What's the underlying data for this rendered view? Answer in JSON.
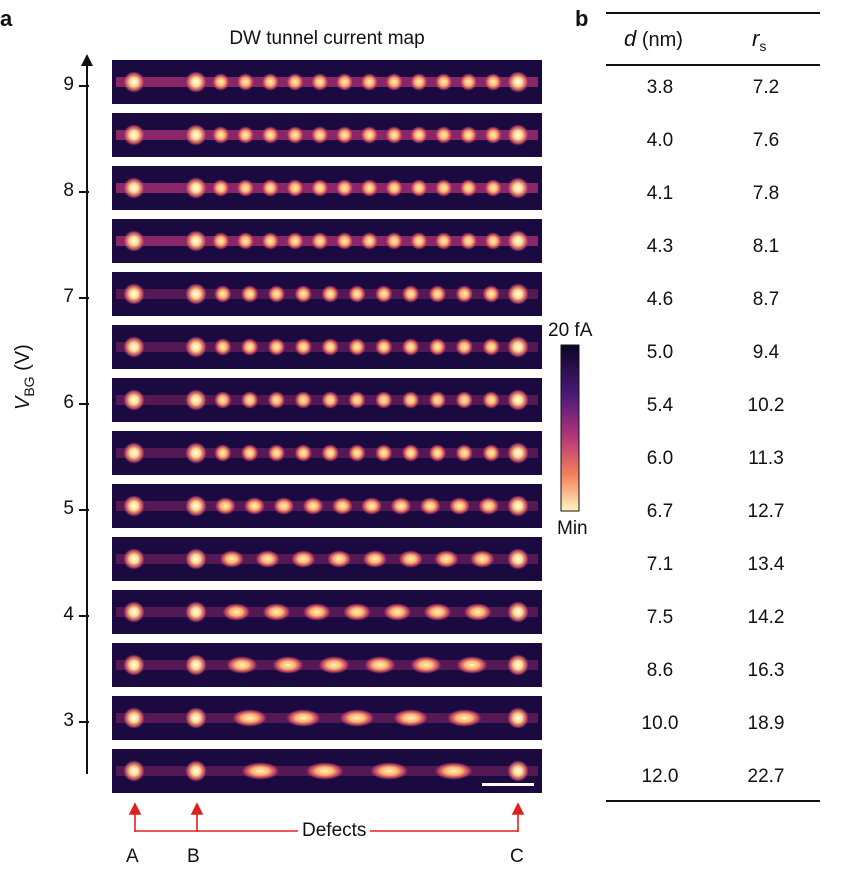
{
  "panel_a": {
    "letter": "a",
    "title": "DW tunnel current map",
    "y_axis": {
      "symbol": "V",
      "subscript": "BG",
      "unit": "(V)",
      "ticks": [
        "9",
        "8",
        "7",
        "6",
        "5",
        "4",
        "3"
      ]
    },
    "colorbar": {
      "max_label": "20 fA",
      "min_label": "Min"
    },
    "defects": {
      "label": "Defects",
      "markers": [
        "A",
        "B",
        "C"
      ]
    },
    "strips": [
      {
        "dots": 15
      },
      {
        "dots": 15
      },
      {
        "dots": 15
      },
      {
        "dots": 15
      },
      {
        "dots": 14
      },
      {
        "dots": 14
      },
      {
        "dots": 14
      },
      {
        "dots": 14
      },
      {
        "dots": 13
      },
      {
        "dots": 11
      },
      {
        "dots": 10
      },
      {
        "dots": 9
      },
      {
        "dots": 8
      },
      {
        "dots": 7
      }
    ],
    "colors": {
      "bg": "#1a0a3f",
      "mid": "#9c2b6e",
      "hot": "#ffe6a6",
      "accent_red": "#e02020"
    }
  },
  "panel_b": {
    "letter": "b",
    "headers": {
      "d_symbol": "d",
      "d_unit": "(nm)",
      "r_symbol": "r",
      "r_subscript": "s"
    },
    "rows": [
      {
        "d": "3.8",
        "r": "7.2"
      },
      {
        "d": "4.0",
        "r": "7.6"
      },
      {
        "d": "4.1",
        "r": "7.8"
      },
      {
        "d": "4.3",
        "r": "8.1"
      },
      {
        "d": "4.6",
        "r": "8.7"
      },
      {
        "d": "5.0",
        "r": "9.4"
      },
      {
        "d": "5.4",
        "r": "10.2"
      },
      {
        "d": "6.0",
        "r": "11.3"
      },
      {
        "d": "6.7",
        "r": "12.7"
      },
      {
        "d": "7.1",
        "r": "13.4"
      },
      {
        "d": "7.5",
        "r": "14.2"
      },
      {
        "d": "8.6",
        "r": "16.3"
      },
      {
        "d": "10.0",
        "r": "18.9"
      },
      {
        "d": "12.0",
        "r": "22.7"
      }
    ]
  }
}
